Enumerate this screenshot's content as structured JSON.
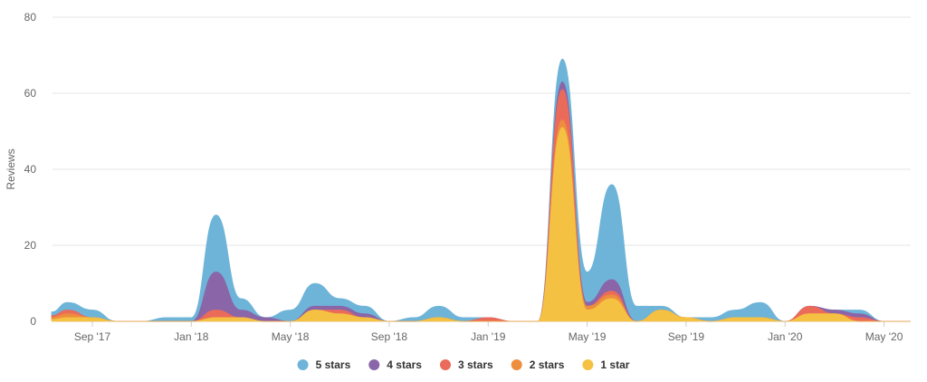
{
  "chart_data": {
    "type": "area",
    "stacked": true,
    "title": "",
    "ylabel": "Reviews",
    "xlabel": "",
    "ylim": [
      0,
      80
    ],
    "yticks": [
      0,
      20,
      40,
      60,
      80
    ],
    "ytick_labels": [
      "0",
      "20",
      "40",
      "60",
      "80"
    ],
    "grid": true,
    "legend_position": "bottom",
    "x_labels": [
      {
        "label": "Sep '17",
        "x": 3
      },
      {
        "label": "Jan '18",
        "x": 7
      },
      {
        "label": "May '18",
        "x": 11
      },
      {
        "label": "Sep '18",
        "x": 15
      },
      {
        "label": "Jan '19",
        "x": 19
      },
      {
        "label": "May '19",
        "x": 23
      },
      {
        "label": "Sep '19",
        "x": 27
      },
      {
        "label": "Jan '20",
        "x": 31
      },
      {
        "label": "May '20",
        "x": 35
      }
    ],
    "x": [
      2,
      3,
      4,
      5,
      6,
      7,
      8,
      9,
      10,
      11,
      12,
      13,
      14,
      15,
      16,
      17,
      18,
      19,
      20,
      21,
      22,
      23,
      24,
      25,
      26,
      27,
      28,
      29,
      30,
      31,
      32,
      33,
      34,
      35
    ],
    "series": [
      {
        "name": "1 star",
        "color": "#f5c142",
        "values": [
          1,
          1,
          0,
          0,
          0,
          0,
          1,
          1,
          0,
          0,
          3,
          2,
          1,
          0,
          0,
          1,
          0,
          0,
          0,
          0,
          51,
          3,
          6,
          0,
          3,
          1,
          0,
          1,
          1,
          0,
          2,
          2,
          0,
          0
        ]
      },
      {
        "name": "2 stars",
        "color": "#ed8d3e",
        "values": [
          1,
          0,
          0,
          0,
          0,
          0,
          0,
          0,
          0,
          0,
          0,
          0,
          0,
          0,
          0,
          0,
          0,
          0,
          0,
          0,
          2,
          1,
          1,
          0,
          0,
          0,
          0,
          0,
          0,
          0,
          0,
          0,
          0,
          0
        ]
      },
      {
        "name": "3 stars",
        "color": "#ea6b5a",
        "values": [
          1,
          0,
          0,
          0,
          0,
          0,
          2,
          0,
          0,
          0,
          0,
          1,
          0,
          0,
          0,
          0,
          0,
          1,
          0,
          0,
          8,
          0,
          1,
          0,
          0,
          0,
          0,
          0,
          0,
          0,
          2,
          0,
          1,
          0
        ]
      },
      {
        "name": "4 stars",
        "color": "#8a65a8",
        "values": [
          0,
          0,
          0,
          0,
          0,
          0,
          10,
          2,
          1,
          0,
          1,
          1,
          1,
          0,
          0,
          0,
          0,
          0,
          0,
          0,
          2,
          1,
          3,
          0,
          0,
          0,
          0,
          0,
          0,
          0,
          0,
          1,
          1,
          0
        ]
      },
      {
        "name": "5 stars",
        "color": "#6eb4d8",
        "values": [
          2,
          2,
          0,
          0,
          1,
          1,
          15,
          3,
          0,
          3,
          6,
          2,
          2,
          0,
          1,
          3,
          1,
          0,
          0,
          0,
          6,
          8,
          25,
          4,
          1,
          0,
          1,
          2,
          4,
          0,
          0,
          0,
          1,
          0
        ]
      }
    ],
    "legend_order": [
      "5 stars",
      "4 stars",
      "3 stars",
      "2 stars",
      "1 star"
    ]
  }
}
